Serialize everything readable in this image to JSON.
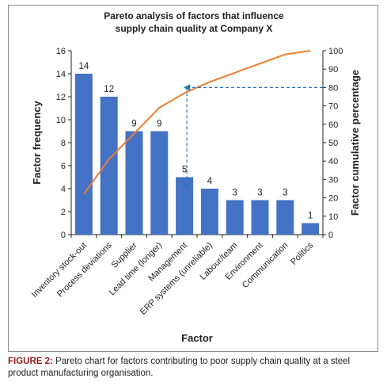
{
  "chart_data": {
    "type": "bar",
    "title_lines": [
      "Pareto analysis of factors that influence",
      "supply chain quality at Company X"
    ],
    "xlabel": "Factor",
    "ylabel": "Factor frequency",
    "y2label": "Factor cumulative percentage",
    "categories": [
      "Inventory stock-out",
      "Process deviations",
      "Supplier",
      "Lead time (longer)",
      "Management",
      "ERP systems (unreliable)",
      "Labour/team",
      "Environment",
      "Communication",
      "Politics"
    ],
    "series": [
      {
        "type": "bar",
        "axis": "left",
        "color": "#4472c4",
        "values": [
          14,
          12,
          9,
          9,
          5,
          4,
          3,
          3,
          3,
          1
        ]
      },
      {
        "type": "line",
        "axis": "right",
        "color": "#ed7d31",
        "values": [
          22,
          41,
          55,
          69,
          77,
          83,
          88,
          93,
          98,
          100
        ]
      }
    ],
    "data_labels": [
      "14",
      "12",
      "9",
      "9",
      "5",
      "4",
      "3",
      "3",
      "3",
      "1"
    ],
    "ylim": [
      0,
      16
    ],
    "yticks": [
      "0",
      "2",
      "4",
      "6",
      "8",
      "10",
      "12",
      "14",
      "16"
    ],
    "y2lim": [
      0,
      100
    ],
    "y2ticks": [
      "0",
      "10",
      "20",
      "30",
      "40",
      "50",
      "60",
      "70",
      "80",
      "90",
      "100"
    ],
    "annotation": {
      "type": "dashed-arrow",
      "color": "#2e75b6",
      "from_y2": 80,
      "to_category_index": 4
    },
    "grid": false,
    "legend": "none"
  },
  "caption": {
    "label": "FIGURE 2:",
    "text": " Pareto chart for factors contributing to poor supply chain quality at a steel product manufacturing organisation."
  }
}
